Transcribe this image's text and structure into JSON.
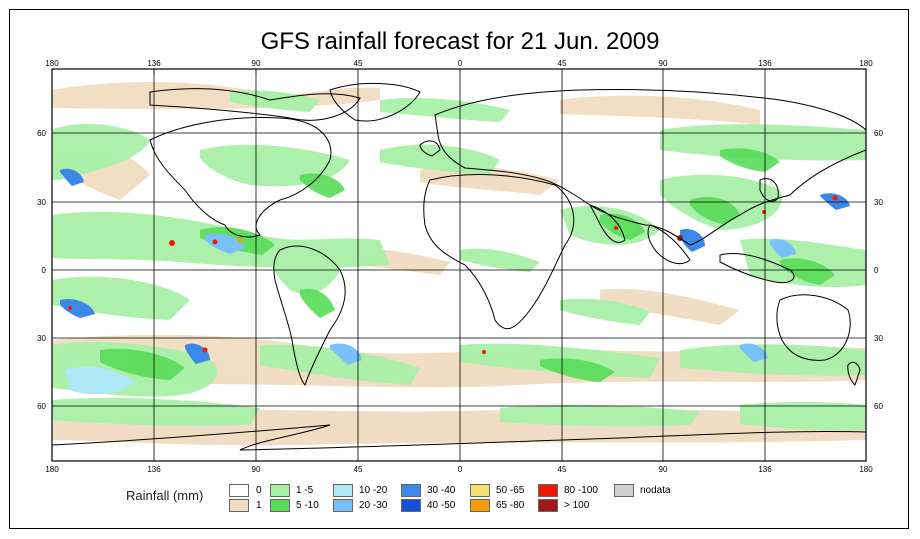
{
  "title": "GFS rainfall forecast for 21 Jun. 2009",
  "lon_ticks": [
    "180",
    "136",
    "90",
    "45",
    "0",
    "45",
    "90",
    "136",
    "180"
  ],
  "lat_ticks": [
    "60",
    "30",
    "0",
    "30",
    "60"
  ],
  "legend": {
    "title": "Rainfall (mm)",
    "classes": [
      {
        "label": "0",
        "color": "#ffffff"
      },
      {
        "label": "1",
        "color": "#f0dcc0"
      },
      {
        "label": "1 -5",
        "color": "#a8f0a8"
      },
      {
        "label": "5 -10",
        "color": "#58dc58"
      },
      {
        "label": "10 -20",
        "color": "#b0e8f8"
      },
      {
        "label": "20 -30",
        "color": "#78c0f8"
      },
      {
        "label": "30 -40",
        "color": "#3c88e8"
      },
      {
        "label": "40 -50",
        "color": "#1450d8"
      },
      {
        "label": "50 -65",
        "color": "#f8e070"
      },
      {
        "label": "65 -80",
        "color": "#f89c00"
      },
      {
        "label": "80 -100",
        "color": "#f01800"
      },
      {
        "label": "> 100",
        "color": "#a01818"
      },
      {
        "label": "nodata",
        "color": "#d0d0d0"
      }
    ]
  },
  "colors": {
    "light_green": "#a8f0a8",
    "green": "#58dc58",
    "tan": "#f0dcc0",
    "light_blue": "#b0e8f8",
    "blue": "#3c88e8",
    "red": "#f01800"
  }
}
